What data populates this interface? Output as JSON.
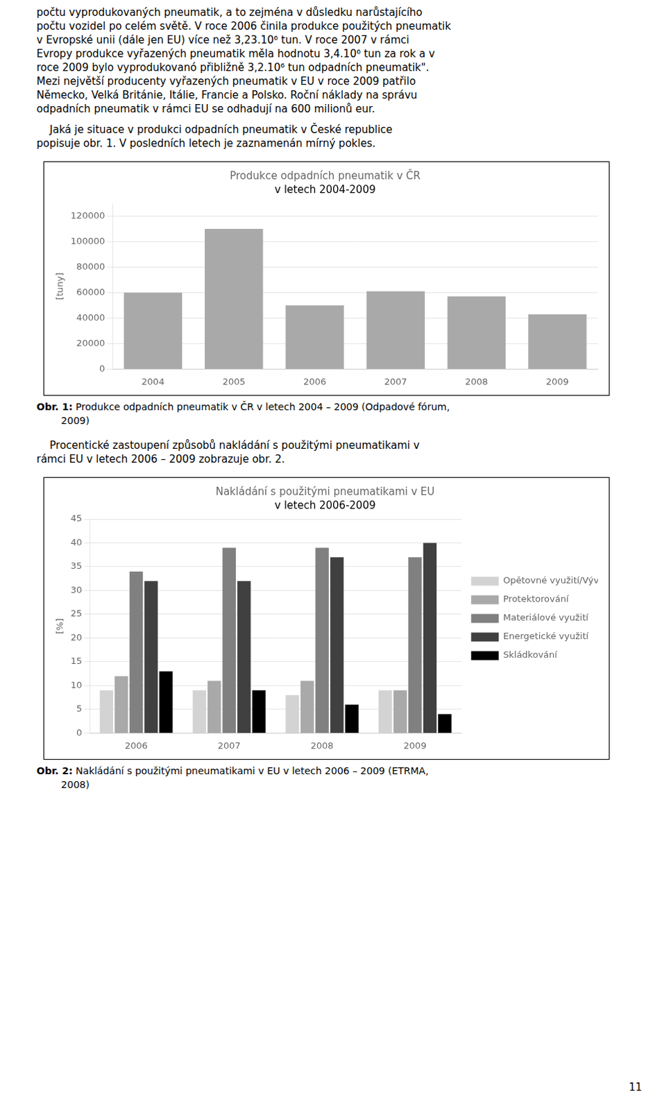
{
  "page_number": "11",
  "chart_data": [
    {
      "type": "bar",
      "text_above": [
        [
          "počtu vyprodukovaných pneumatik, a to zejména v důsledku narůstajícího",
          "počtu vozidel po celém světě. V roce 2006 činila produkce použitých pneumatik",
          "v Evropské unii (dále jen EU) více než 3,23.10⁶ tun. V roce 2007 v rámci",
          "Evropy produkce vyřazených pneumatik měla hodnotu 3,4.10⁶ tun za rok a v",
          "roce 2009 bylo vyprodukovanó přibližně 3,2.10⁶ tun odpadních pneumatik\".",
          "Mezi největší producenty vyřazených pneumatik v EU v roce 2009 patřilo",
          "Německo, Velká Británie, Itálie, Francie a Polsko. Roční náklady na správu",
          "odpadních pneumatik v rámci EU se odhadují na 600 milionů eur."
        ],
        [
          "    Jaká je situace v produkci odpadních pneumatik v České republice",
          "popisuje obr. 1. V posledních letech je zaznamenán mírný pokles."
        ]
      ],
      "title": "Produkce odpadních pneumatik v ČR",
      "subtitle": "v letech 2004-2009",
      "y_label": "[tuny]",
      "categories": [
        "2004",
        "2005",
        "2006",
        "2007",
        "2008",
        "2009"
      ],
      "values": [
        60000,
        110000,
        50000,
        61000,
        57000,
        43000
      ],
      "color": "#A9A9A9",
      "ylim": [
        0,
        130000
      ],
      "yticks": [
        0,
        20000,
        40000,
        60000,
        80000,
        100000,
        120000
      ],
      "grid": true,
      "caption_label": "Obr. 1:",
      "caption": [
        " Produkce odpadních pneumatik v ČR v letech 2004 – 2009 (Odpadové fórum,",
        "        2009)"
      ]
    },
    {
      "type": "bar",
      "text_above": [
        [
          "    Procentické zastoupení způsobů nakládání s použitými pneumatikami v",
          "rámci EU v letech 2006 – 2009 zobrazuje obr. 2."
        ]
      ],
      "title": "Nakládání s použitými pneumatikami v EU",
      "subtitle": "v letech 2006-2009",
      "y_label": "[%]",
      "categories": [
        "2006",
        "2007",
        "2008",
        "2009"
      ],
      "series": [
        {
          "name": "Opětovné využití/Vývoz",
          "color": "#D3D3D3",
          "values": [
            9,
            9,
            8,
            9
          ]
        },
        {
          "name": "Protektorování",
          "color": "#A9A9A9",
          "values": [
            12,
            11,
            11,
            9
          ]
        },
        {
          "name": "Materiálové využití",
          "color": "#808080",
          "values": [
            34,
            39,
            39,
            37
          ]
        },
        {
          "name": "Energetické využití",
          "color": "#404040",
          "values": [
            32,
            32,
            37,
            40
          ]
        },
        {
          "name": "Skládkování",
          "color": "#000000",
          "values": [
            13,
            9,
            6,
            4
          ]
        }
      ],
      "ylim": [
        0,
        45
      ],
      "yticks": [
        0,
        5,
        10,
        15,
        20,
        25,
        30,
        35,
        40,
        45
      ],
      "grid": true,
      "legend": "right",
      "caption_label": "Obr. 2:",
      "caption": [
        " Nakládání s použitými pneumatikami v EU v letech 2006 – 2009 (ETRMA,",
        "        2008)"
      ]
    }
  ]
}
